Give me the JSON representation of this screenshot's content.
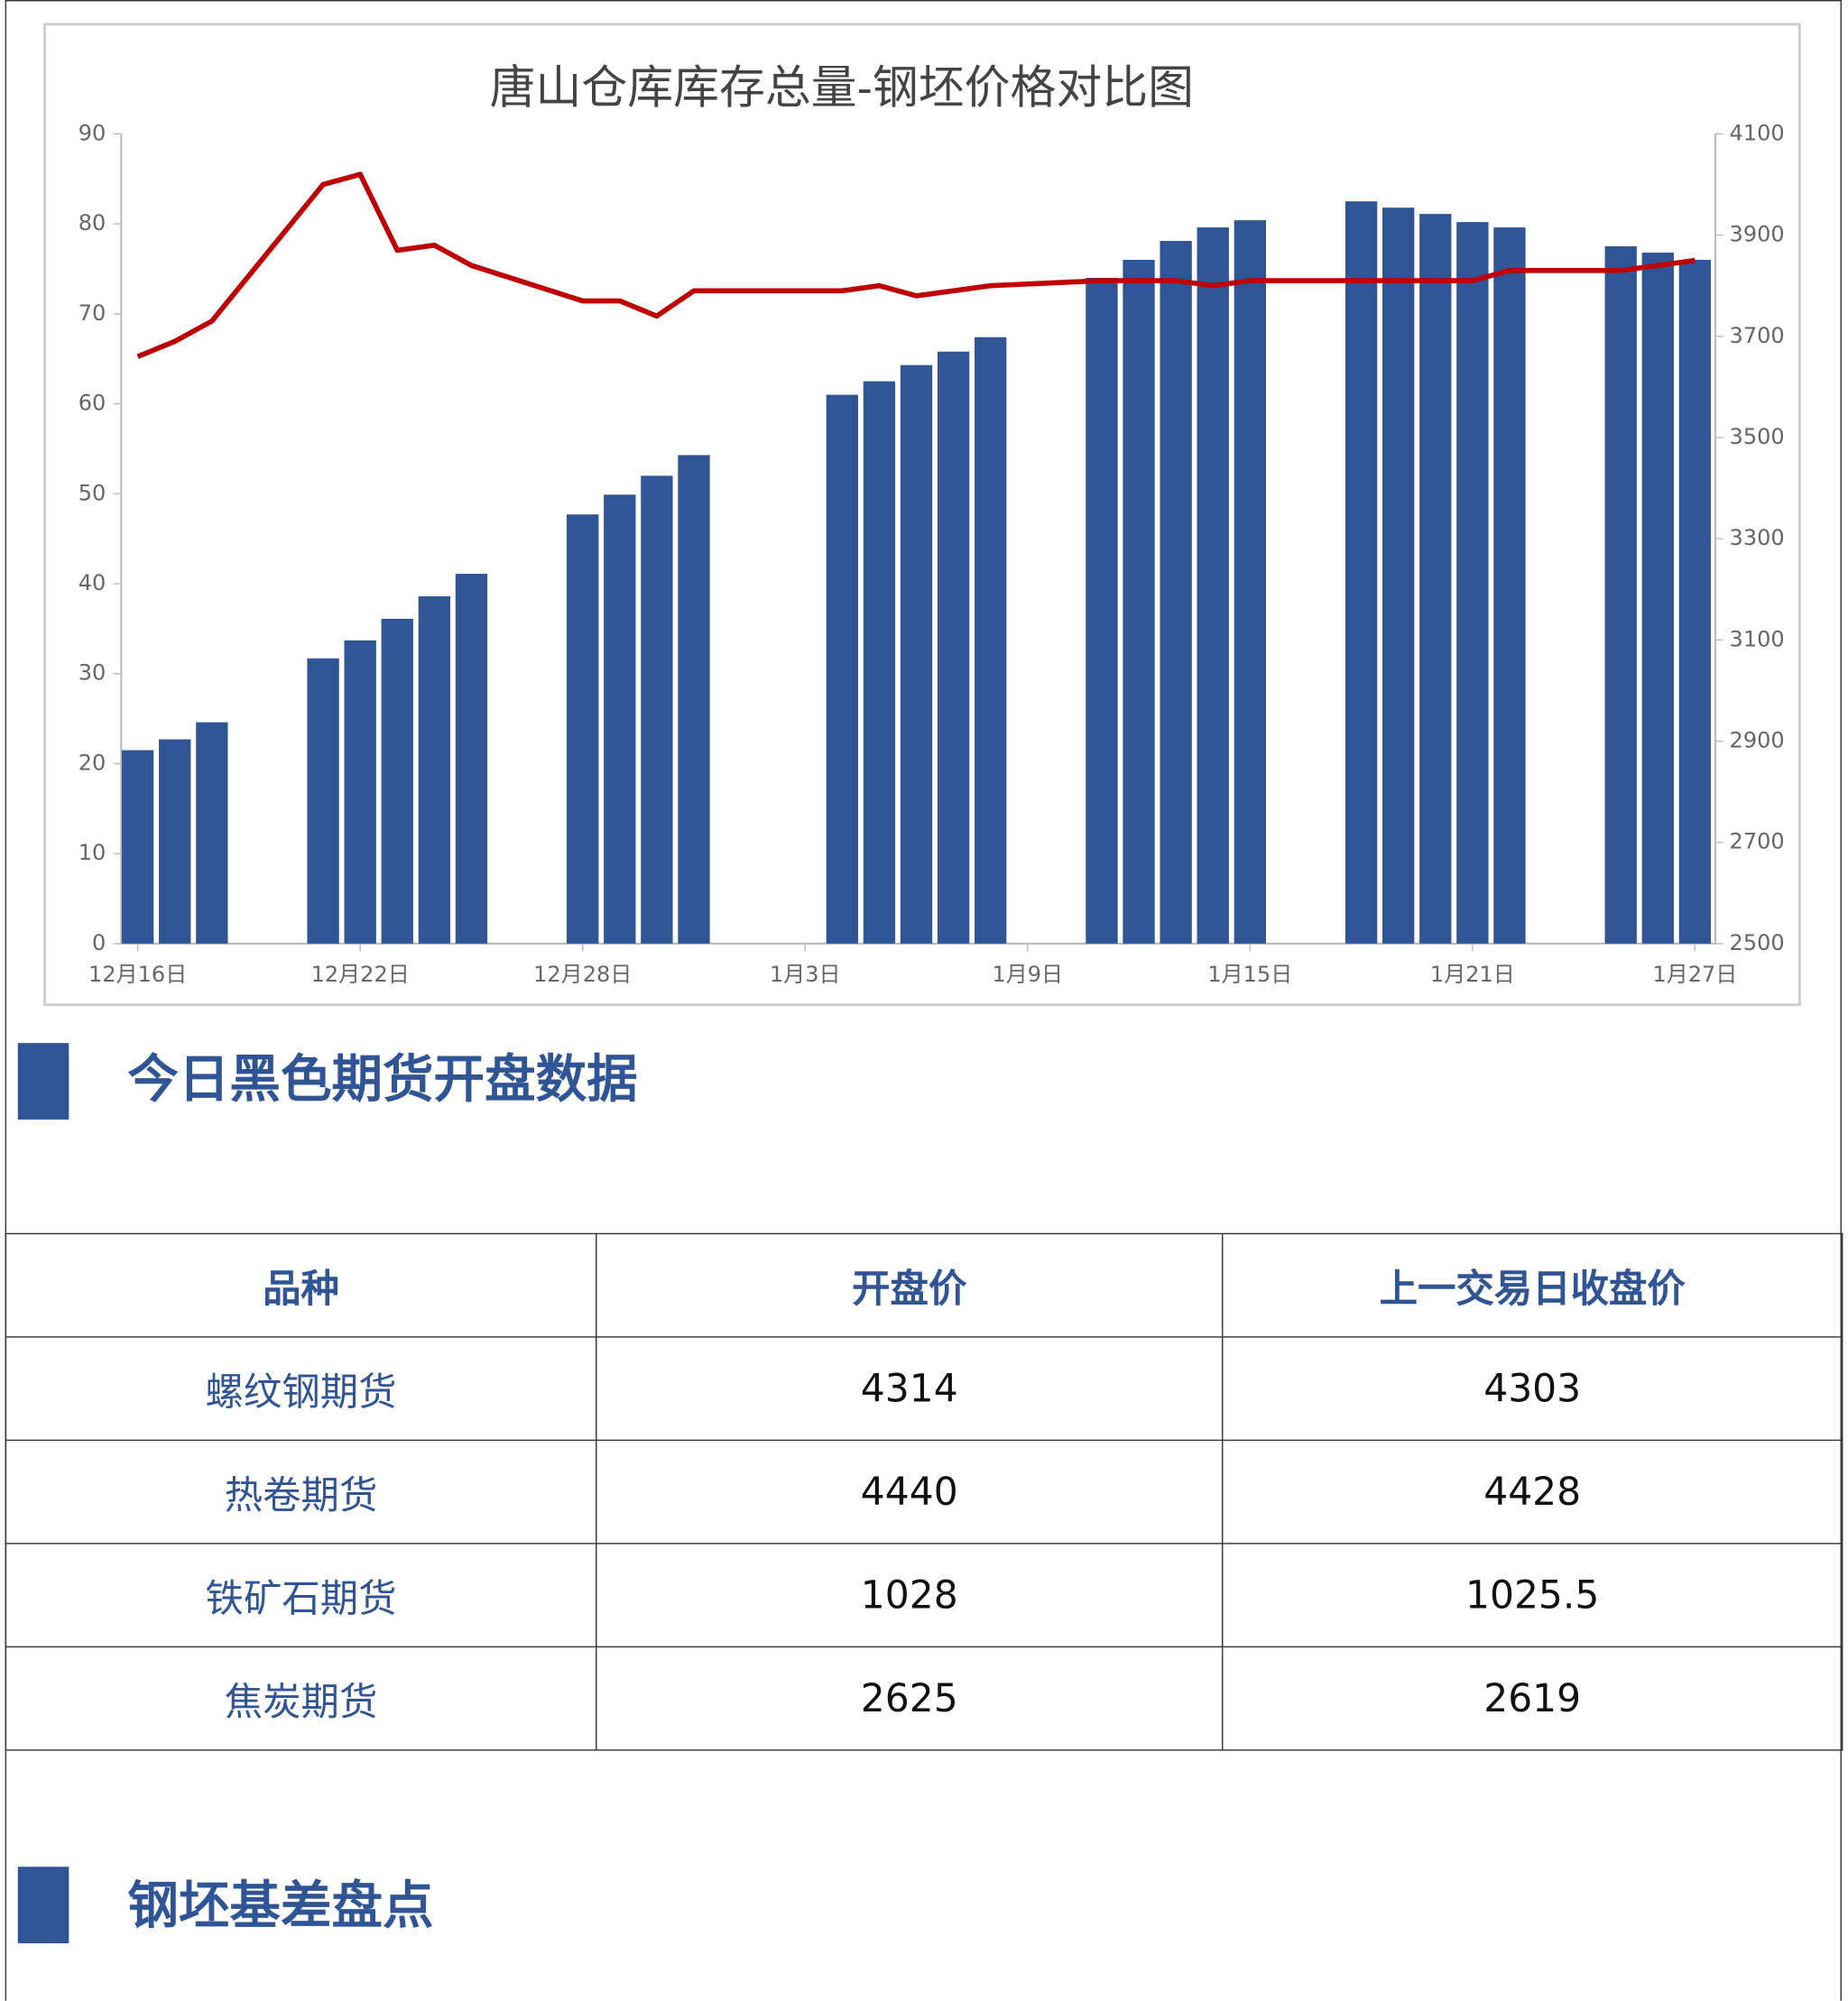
{
  "chart_data": {
    "type": "bar-line",
    "title": "唐山仓库库存总量-钢坯价格对比图",
    "x": [
      "12月16日",
      "12月17日",
      "12月18日",
      "12月21日",
      "12月22日",
      "12月23日",
      "12月24日",
      "12月25日",
      "12月28日",
      "12月29日",
      "12月30日",
      "12月31日",
      "1月4日",
      "1月5日",
      "1月6日",
      "1月7日",
      "1月8日",
      "1月11日",
      "1月12日",
      "1月13日",
      "1月14日",
      "1月15日",
      "1月18日",
      "1月19日",
      "1月20日",
      "1月21日",
      "1月22日",
      "1月25日",
      "1月26日",
      "1月27日"
    ],
    "xticks": [
      "12月16日",
      "12月22日",
      "12月28日",
      "1月3日",
      "1月9日",
      "1月15日",
      "1月21日",
      "1月27日"
    ],
    "series": [
      {
        "type": "bar",
        "color": "#2f5597",
        "values": [
          21.5,
          22.7,
          24.6,
          31.7,
          33.7,
          36.1,
          38.6,
          41.1,
          47.7,
          49.9,
          52,
          54.3,
          61,
          62.5,
          64.3,
          65.8,
          67.4,
          74,
          76,
          78.1,
          79.6,
          80.4,
          82.5,
          81.8,
          81.1,
          80.2,
          79.6,
          77.5,
          76.8,
          76
        ]
      },
      {
        "type": "line",
        "axis": "y2",
        "color": "#c00000",
        "values": [
          3660,
          3690,
          3730,
          4000,
          4020,
          3870,
          3880,
          3840,
          3770,
          3770,
          3740,
          3790,
          3790,
          3800,
          3780,
          3790,
          3800,
          3810,
          3810,
          3810,
          3800,
          3810,
          3810,
          3810,
          3810,
          3810,
          3830,
          3830,
          3840,
          3850
        ]
      }
    ],
    "ylim": [
      0,
      90
    ],
    "yticks": [
      0,
      10,
      20,
      30,
      40,
      50,
      60,
      70,
      80,
      90
    ],
    "y2lim": [
      2500,
      4100
    ],
    "y2ticks": [
      2500,
      2700,
      2900,
      3100,
      3300,
      3500,
      3700,
      3900,
      4100
    ]
  },
  "section1": {
    "title": "今日黑色期货开盘数据"
  },
  "table": {
    "header": [
      "品种",
      "开盘价",
      "上一交易日收盘价"
    ],
    "rows": [
      [
        "螺纹钢期货",
        4314,
        4303
      ],
      [
        "热卷期货",
        4440,
        4428
      ],
      [
        "铁矿石期货",
        1028,
        1025.5
      ],
      [
        "焦炭期货",
        2625,
        2619
      ]
    ]
  },
  "section2": {
    "title": "钢坯基差盘点"
  }
}
